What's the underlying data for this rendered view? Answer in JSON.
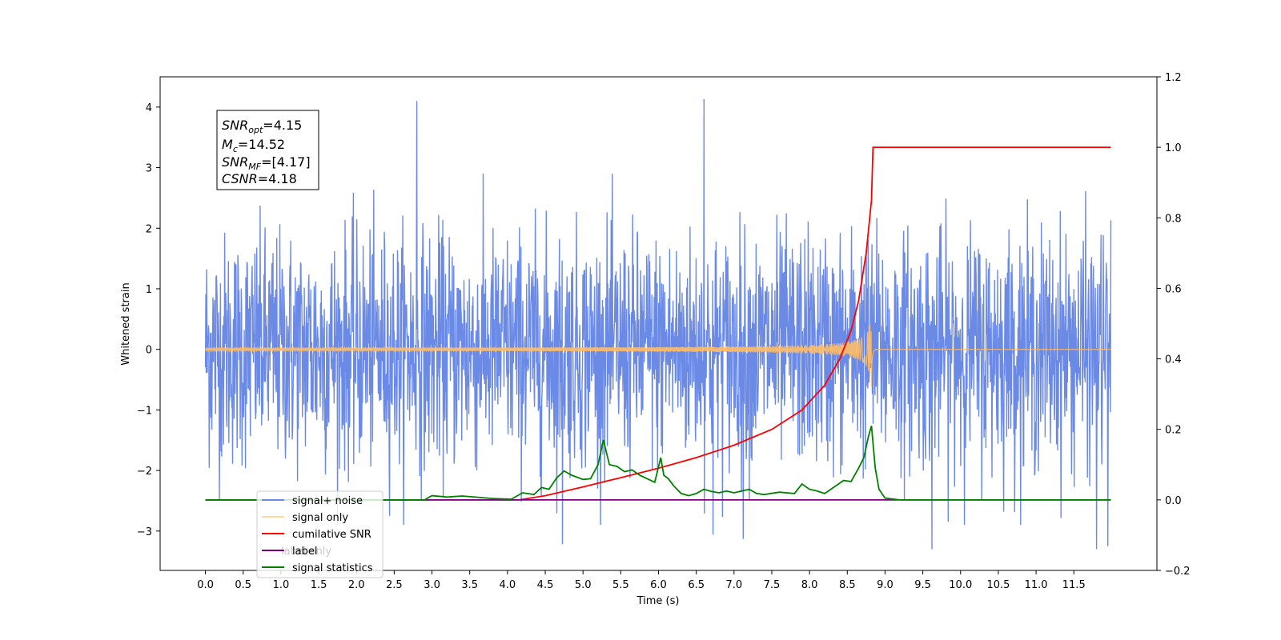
{
  "chart_data": {
    "type": "line",
    "title": "",
    "xlabel": "Time (s)",
    "ylabel": "Whitened strain",
    "xlim": [
      -0.6,
      12.6
    ],
    "ylim": [
      -3.65,
      4.5
    ],
    "y2lim": [
      -0.2,
      1.2
    ],
    "x_ticks": [
      0.0,
      0.5,
      1.0,
      1.5,
      2.0,
      2.5,
      3.0,
      3.5,
      4.0,
      4.5,
      5.0,
      5.5,
      6.0,
      6.5,
      7.0,
      7.5,
      8.0,
      8.5,
      9.0,
      9.5,
      10.0,
      10.5,
      11.0,
      11.5
    ],
    "x_tick_labels": [
      "0.0",
      "0.5",
      "1.0",
      "1.5",
      "2.0",
      "2.5",
      "3.0",
      "3.5",
      "4.0",
      "4.5",
      "5.0",
      "5.5",
      "6.0",
      "6.5",
      "7.0",
      "7.5",
      "8.0",
      "8.5",
      "9.0",
      "9.5",
      "10.0",
      "10.5",
      "11.0",
      "11.5"
    ],
    "y_ticks": [
      -3,
      -2,
      -1,
      0,
      1,
      2,
      3,
      4
    ],
    "y_tick_labels": [
      "−3",
      "−2",
      "−1",
      "0",
      "1",
      "2",
      "3",
      "4"
    ],
    "y2_ticks": [
      -0.2,
      0.0,
      0.2,
      0.4,
      0.6,
      0.8,
      1.0,
      1.2
    ],
    "y2_tick_labels": [
      "−0.2",
      "0.0",
      "0.2",
      "0.4",
      "0.6",
      "0.8",
      "1.0",
      "1.2"
    ],
    "grid": false,
    "legend_position": "bottom-left",
    "series": [
      {
        "name": "signal+ noise",
        "color": "#6b8ae6",
        "axis": "left",
        "kind": "white-noise",
        "t_start": 0.0,
        "t_end": 11.99,
        "typical_range": [
          -2.5,
          2.5
        ],
        "peaks": [
          {
            "x": 2.8,
            "y": 4.1
          },
          {
            "x": 6.6,
            "y": 4.13
          },
          {
            "x": 4.73,
            "y": -3.22
          },
          {
            "x": 9.62,
            "y": -3.3
          },
          {
            "x": 11.8,
            "y": -3.3
          },
          {
            "x": 7.12,
            "y": -3.13
          },
          {
            "x": 6.72,
            "y": -3.06
          },
          {
            "x": 11.95,
            "y": -3.25
          }
        ]
      },
      {
        "name": "signal only",
        "color": "#ffbd66",
        "axis": "left",
        "kind": "chirp",
        "t_start": 0.0,
        "t_end": 11.99,
        "t_merger": 8.82,
        "peak_amplitude": 0.62
      },
      {
        "name": "cumilative SNR",
        "color": "#ff0000",
        "axis": "right",
        "x": [
          0.0,
          4.15,
          4.5,
          5.0,
          5.5,
          6.0,
          6.5,
          7.0,
          7.5,
          7.9,
          8.2,
          8.4,
          8.55,
          8.65,
          8.75,
          8.82,
          8.84,
          11.99
        ],
        "y": [
          0.0,
          0.0,
          0.012,
          0.037,
          0.063,
          0.09,
          0.12,
          0.155,
          0.2,
          0.255,
          0.325,
          0.4,
          0.48,
          0.565,
          0.7,
          0.85,
          1.0,
          1.0
        ]
      },
      {
        "name": "label",
        "color": "#800080",
        "axis": "right",
        "x": [
          0.0,
          11.99
        ],
        "y": [
          0.0,
          0.0
        ]
      },
      {
        "name": "signal statistics",
        "color": "#008000",
        "axis": "right",
        "x": [
          0.0,
          2.9,
          3.0,
          3.2,
          3.4,
          3.8,
          4.05,
          4.2,
          4.35,
          4.45,
          4.55,
          4.65,
          4.75,
          4.85,
          5.0,
          5.1,
          5.2,
          5.27,
          5.35,
          5.45,
          5.55,
          5.65,
          5.75,
          5.85,
          5.95,
          6.03,
          6.07,
          6.13,
          6.2,
          6.3,
          6.4,
          6.5,
          6.6,
          6.7,
          6.8,
          6.9,
          7.0,
          7.2,
          7.3,
          7.4,
          7.6,
          7.8,
          7.9,
          8.0,
          8.1,
          8.2,
          8.35,
          8.45,
          8.55,
          8.65,
          8.72,
          8.78,
          8.82,
          8.87,
          8.92,
          9.0,
          9.2,
          11.99
        ],
        "y": [
          0.0,
          0.0,
          0.012,
          0.008,
          0.011,
          0.004,
          0.002,
          0.02,
          0.015,
          0.035,
          0.03,
          0.062,
          0.082,
          0.07,
          0.058,
          0.06,
          0.1,
          0.17,
          0.1,
          0.095,
          0.08,
          0.085,
          0.07,
          0.06,
          0.05,
          0.12,
          0.07,
          0.06,
          0.04,
          0.018,
          0.012,
          0.018,
          0.03,
          0.024,
          0.02,
          0.025,
          0.02,
          0.03,
          0.018,
          0.015,
          0.022,
          0.018,
          0.045,
          0.03,
          0.025,
          0.018,
          0.04,
          0.055,
          0.052,
          0.09,
          0.12,
          0.18,
          0.21,
          0.09,
          0.03,
          0.005,
          0.0,
          0.0
        ]
      }
    ],
    "annotation": {
      "snr_opt": {
        "symbol": "SNR",
        "sub": "opt",
        "value": "=4.15"
      },
      "mc": {
        "symbol": "M",
        "sub": "c",
        "value": "=14.52"
      },
      "snr_mf": {
        "symbol": "SNR",
        "sub": "MF",
        "value": "=[4.17]"
      },
      "csnr": {
        "symbol": "CSNR",
        "value": "=4.18"
      }
    },
    "legend_overlap_text": "label only"
  }
}
